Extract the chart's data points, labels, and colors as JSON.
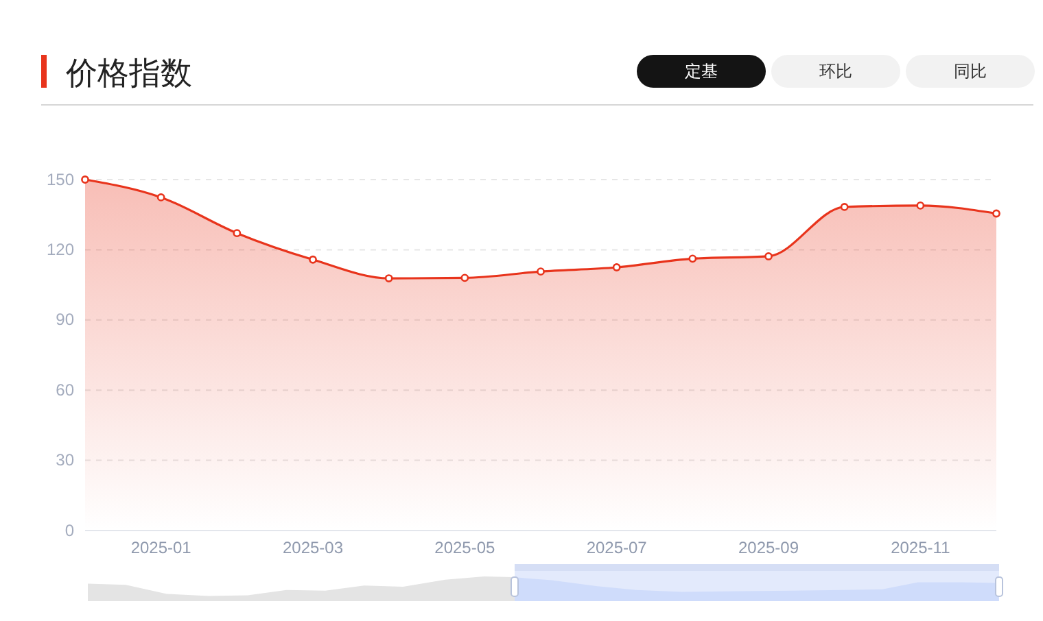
{
  "chart_data": {
    "type": "area",
    "title": "价格指数",
    "annotations": [
      "定基",
      "环比",
      "同比"
    ],
    "categories": [
      null,
      "2025-01",
      null,
      "2025-03",
      null,
      "2025-05",
      null,
      "2025-07",
      null,
      "2025-09",
      null,
      "2025-11",
      null
    ],
    "values": [
      150,
      142.4,
      127.1,
      115.8,
      107.8,
      108.0,
      110.7,
      112.5,
      116.2,
      117.2,
      138.3,
      138.9,
      135.5
    ],
    "color": "#e8341c",
    "ylim": [
      0,
      150
    ],
    "yticks": [
      0,
      30,
      60,
      90,
      120,
      150
    ],
    "grid": "y",
    "marker": "circle"
  }
}
